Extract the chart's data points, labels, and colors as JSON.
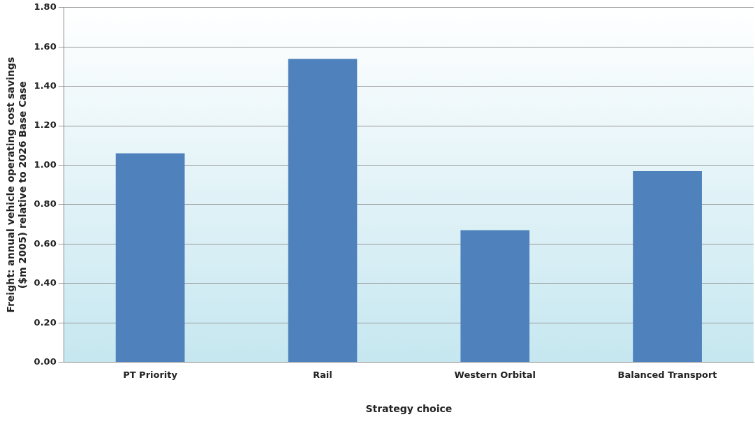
{
  "chart_data": {
    "type": "bar",
    "xlabel": "Strategy choice",
    "ylabel": "Freight: annual vehicle operating cost savings ($m 2005) relative to 2026 Base Case",
    "categories": [
      "PT Priority",
      "Rail",
      "Western Orbital",
      "Balanced Transport"
    ],
    "values": [
      1.06,
      1.54,
      0.67,
      0.97
    ],
    "color": "#4f81bd",
    "ylim": [
      0,
      1.8
    ],
    "yticks": [
      {
        "value": 0,
        "label": "0.00"
      },
      {
        "value": 0.2,
        "label": "0.20"
      },
      {
        "value": 0.4,
        "label": "0.40"
      },
      {
        "value": 0.6,
        "label": "0.60"
      },
      {
        "value": 0.8,
        "label": "0.80"
      },
      {
        "value": 1,
        "label": "1.00"
      },
      {
        "value": 1.2,
        "label": "1.20"
      },
      {
        "value": 1.4,
        "label": "1.40"
      },
      {
        "value": 1.6,
        "label": "1.60"
      },
      {
        "value": 1.8,
        "label": "1.80"
      }
    ],
    "grid": "y",
    "legend": false
  }
}
